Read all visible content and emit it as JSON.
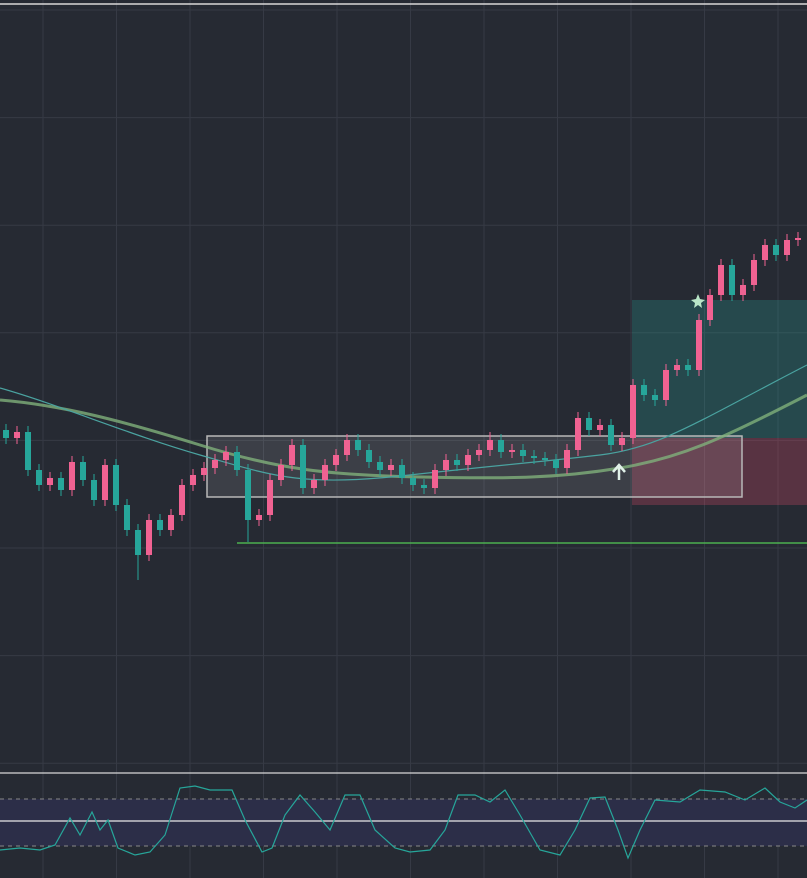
{
  "chart_data": {
    "type": "candlestick",
    "ylim": [
      0,
      770
    ],
    "grid": true,
    "up_color": "#f06292",
    "down_color": "#26a69a",
    "series": [
      {
        "open": [
          340,
          332,
          338,
          300,
          285,
          292,
          280,
          308,
          290,
          270,
          305,
          265,
          240,
          215,
          250,
          240,
          255,
          285,
          295,
          302,
          310,
          318,
          300,
          250,
          255,
          290,
          305,
          325,
          282,
          290,
          305,
          315,
          330,
          320,
          308,
          300,
          305,
          292,
          285,
          282,
          300,
          310,
          305,
          315,
          320,
          330,
          318,
          320,
          314,
          312,
          310,
          302,
          320,
          352,
          340,
          345,
          325,
          332,
          385,
          375,
          370,
          400,
          405,
          400,
          450,
          475,
          505,
          475,
          485,
          510,
          525,
          515,
          530
        ],
        "high": [
          346,
          344,
          344,
          306,
          298,
          298,
          314,
          314,
          296,
          311,
          311,
          271,
          246,
          256,
          256,
          261,
          291,
          301,
          308,
          316,
          324,
          324,
          306,
          261,
          296,
          311,
          331,
          331,
          296,
          311,
          321,
          336,
          336,
          326,
          314,
          311,
          311,
          298,
          291,
          306,
          316,
          316,
          321,
          326,
          338,
          336,
          326,
          326,
          320,
          318,
          316,
          326,
          358,
          358,
          351,
          351,
          338,
          391,
          391,
          381,
          406,
          411,
          411,
          456,
          481,
          511,
          511,
          491,
          516,
          531,
          531,
          536,
          538
        ],
        "low": [
          326,
          326,
          294,
          279,
          279,
          274,
          274,
          284,
          264,
          264,
          259,
          234,
          190,
          209,
          234,
          234,
          249,
          279,
          289,
          296,
          304,
          294,
          228,
          244,
          249,
          284,
          299,
          276,
          276,
          284,
          299,
          309,
          314,
          302,
          294,
          294,
          286,
          279,
          276,
          276,
          294,
          299,
          299,
          309,
          314,
          312,
          312,
          308,
          306,
          304,
          296,
          296,
          314,
          334,
          334,
          319,
          319,
          326,
          369,
          364,
          364,
          394,
          394,
          394,
          444,
          469,
          469,
          469,
          479,
          504,
          509,
          509,
          524
        ],
        "close": [
          332,
          338,
          300,
          285,
          292,
          280,
          308,
          290,
          270,
          305,
          265,
          240,
          215,
          250,
          240,
          255,
          285,
          295,
          302,
          310,
          318,
          300,
          250,
          255,
          290,
          305,
          325,
          282,
          290,
          305,
          315,
          330,
          320,
          308,
          300,
          305,
          292,
          285,
          282,
          300,
          310,
          305,
          315,
          320,
          330,
          318,
          320,
          314,
          312,
          310,
          302,
          320,
          352,
          340,
          345,
          325,
          332,
          385,
          375,
          370,
          400,
          405,
          400,
          450,
          475,
          505,
          475,
          485,
          510,
          525,
          515,
          530,
          532
        ]
      }
    ]
  }
}
